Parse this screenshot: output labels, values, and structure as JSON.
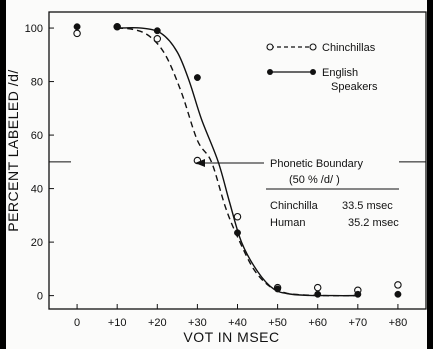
{
  "chart_data": {
    "type": "scatter",
    "xlabel": "VOT IN MSEC",
    "ylabel": "PERCENT LABELED /d/",
    "x_ticks": [
      0,
      10,
      20,
      30,
      40,
      50,
      60,
      70,
      80
    ],
    "x_tick_labels": [
      "0",
      "+10",
      "+20",
      "+30",
      "+40",
      "+50",
      "+60",
      "+70",
      "+80"
    ],
    "y_ticks": [
      0,
      20,
      40,
      60,
      80,
      100
    ],
    "y_tick_labels": [
      "0",
      "20",
      "40",
      "60",
      "80",
      "100"
    ],
    "xlim": [
      -7,
      87
    ],
    "ylim": [
      -5,
      106
    ],
    "grid": false,
    "legend_position": "top-right",
    "series": [
      {
        "name": "Chinchillas",
        "marker": "open-circle",
        "line_style": "dashed",
        "points": [
          [
            0,
            98
          ],
          [
            10,
            100.5
          ],
          [
            20,
            96
          ],
          [
            30,
            50.5
          ],
          [
            40,
            29.5
          ],
          [
            50,
            3
          ],
          [
            60,
            3
          ],
          [
            70,
            2
          ],
          [
            80,
            4
          ]
        ],
        "curve": [
          [
            10,
            100
          ],
          [
            14,
            99.5
          ],
          [
            18,
            97
          ],
          [
            22,
            90
          ],
          [
            26,
            76
          ],
          [
            30,
            58
          ],
          [
            33.5,
            50
          ],
          [
            37,
            33
          ],
          [
            40,
            22
          ],
          [
            44,
            10
          ],
          [
            48,
            3.5
          ],
          [
            52,
            1
          ],
          [
            56,
            0.3
          ],
          [
            62,
            0
          ],
          [
            70,
            0
          ]
        ]
      },
      {
        "name": "English Speakers",
        "marker": "filled-circle",
        "line_style": "solid",
        "points": [
          [
            0,
            100.5
          ],
          [
            10,
            100.5
          ],
          [
            20,
            99
          ],
          [
            30,
            81.5
          ],
          [
            40,
            23.5
          ],
          [
            50,
            2.5
          ],
          [
            60,
            0.5
          ],
          [
            70,
            0.5
          ],
          [
            80,
            0.5
          ]
        ],
        "curve": [
          [
            10,
            100
          ],
          [
            16,
            100
          ],
          [
            21,
            98
          ],
          [
            25,
            91
          ],
          [
            28,
            80
          ],
          [
            31,
            66
          ],
          [
            35.2,
            50
          ],
          [
            38,
            35
          ],
          [
            41,
            20
          ],
          [
            45,
            9
          ],
          [
            49,
            2.5
          ],
          [
            53,
            0.6
          ],
          [
            58,
            0.1
          ],
          [
            64,
            0
          ],
          [
            70,
            0
          ]
        ]
      }
    ],
    "annotations": {
      "boundary_title": "Phonetic Boundary",
      "boundary_sub": "(50 % /d/ )",
      "rows": [
        {
          "label": "Chinchilla",
          "value": "33.5 msec"
        },
        {
          "label": "Human",
          "value": "35.2 msec"
        }
      ]
    }
  }
}
